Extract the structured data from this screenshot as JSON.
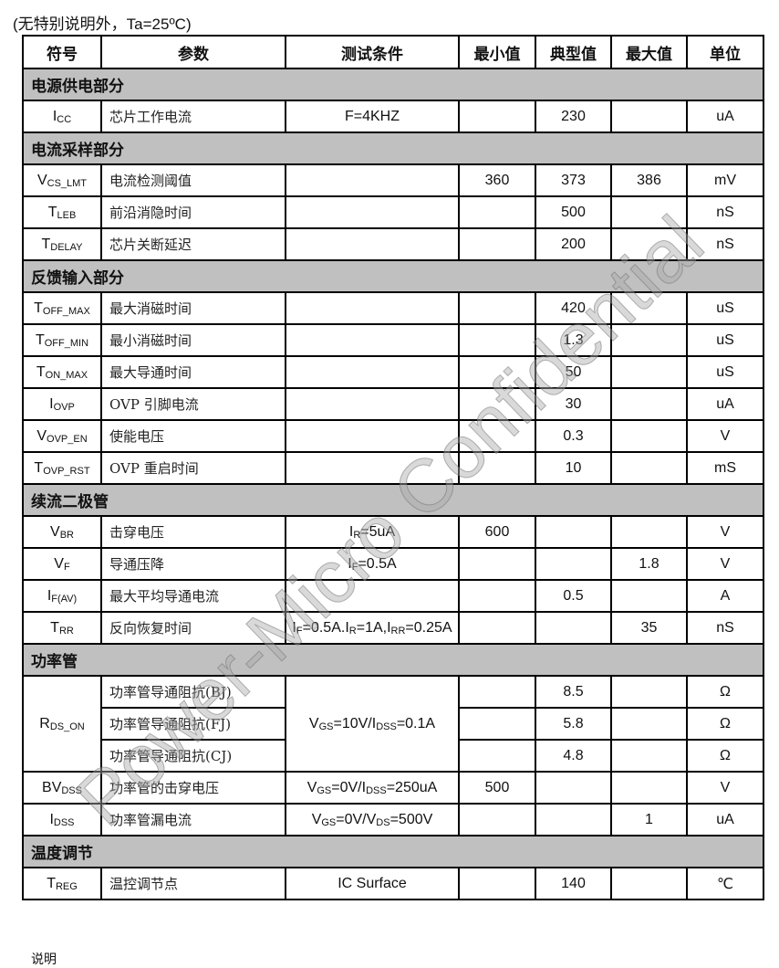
{
  "note": "(无特别说明外，Ta=25ºC)",
  "headers": [
    "符号",
    "参数",
    "测试条件",
    "最小值",
    "典型值",
    "最大值",
    "单位"
  ],
  "watermark": "Power-Micro Confidential",
  "footer": "说明",
  "rows": [
    {
      "section": "电源供电部分"
    },
    {
      "sym": [
        [
          "I",
          ""
        ],
        [
          "CC",
          "s"
        ]
      ],
      "param": "芯片工作电流",
      "cond": [
        [
          "F=4KHZ",
          ""
        ]
      ],
      "min": "",
      "typ": "230",
      "max": "",
      "unit": "uA"
    },
    {
      "section": "电流采样部分"
    },
    {
      "sym": [
        [
          "V",
          ""
        ],
        [
          "CS_LMT",
          "s"
        ]
      ],
      "param": "电流检测阈值",
      "cond": [],
      "min": "360",
      "typ": "373",
      "max": "386",
      "unit": "mV"
    },
    {
      "sym": [
        [
          "T",
          ""
        ],
        [
          "LEB",
          "s"
        ]
      ],
      "param": "前沿消隐时间",
      "cond": [],
      "min": "",
      "typ": "500",
      "max": "",
      "unit": "nS"
    },
    {
      "sym": [
        [
          "T",
          ""
        ],
        [
          "DELAY",
          "s"
        ]
      ],
      "param": "芯片关断延迟",
      "cond": [],
      "min": "",
      "typ": "200",
      "max": "",
      "unit": "nS"
    },
    {
      "section": "反馈输入部分"
    },
    {
      "sym": [
        [
          "T",
          ""
        ],
        [
          "OFF_MAX",
          "s"
        ]
      ],
      "param": "最大消磁时间",
      "cond": [],
      "min": "",
      "typ": "420",
      "max": "",
      "unit": "uS"
    },
    {
      "sym": [
        [
          "T",
          ""
        ],
        [
          "OFF_MIN",
          "s"
        ]
      ],
      "param": "最小消磁时间",
      "cond": [],
      "min": "",
      "typ": "1.3",
      "max": "",
      "unit": "uS"
    },
    {
      "sym": [
        [
          "T",
          ""
        ],
        [
          "ON_MAX",
          "s"
        ]
      ],
      "param": "最大导通时间",
      "cond": [],
      "min": "",
      "typ": "50",
      "max": "",
      "unit": "uS"
    },
    {
      "sym": [
        [
          "I",
          ""
        ],
        [
          "OVP",
          "s"
        ]
      ],
      "param": "OVP 引脚电流",
      "cond": [],
      "min": "",
      "typ": "30",
      "max": "",
      "unit": "uA"
    },
    {
      "sym": [
        [
          "V",
          ""
        ],
        [
          "OVP_EN",
          "s"
        ]
      ],
      "param": "使能电压",
      "cond": [],
      "min": "",
      "typ": "0.3",
      "max": "",
      "unit": "V"
    },
    {
      "sym": [
        [
          "T",
          ""
        ],
        [
          "OVP_RST",
          "s"
        ]
      ],
      "param": "OVP 重启时间",
      "cond": [],
      "min": "",
      "typ": "10",
      "max": "",
      "unit": "mS"
    },
    {
      "section": "续流二极管"
    },
    {
      "sym": [
        [
          "V",
          ""
        ],
        [
          "BR",
          "s"
        ]
      ],
      "param": "击穿电压",
      "cond": [
        [
          "I",
          ""
        ],
        [
          "R",
          "s"
        ],
        [
          "=5uA",
          ""
        ]
      ],
      "min": "600",
      "typ": "",
      "max": "",
      "unit": "V"
    },
    {
      "sym": [
        [
          "V",
          ""
        ],
        [
          "F",
          "s"
        ]
      ],
      "param": "导通压降",
      "cond": [
        [
          "I",
          ""
        ],
        [
          "F",
          "s"
        ],
        [
          "=0.5A",
          ""
        ]
      ],
      "min": "",
      "typ": "",
      "max": "1.8",
      "unit": "V"
    },
    {
      "sym": [
        [
          "I",
          ""
        ],
        [
          "F(AV)",
          "s"
        ]
      ],
      "param": "最大平均导通电流",
      "cond": [],
      "min": "",
      "typ": "0.5",
      "max": "",
      "unit": "A"
    },
    {
      "sym": [
        [
          "T",
          ""
        ],
        [
          "RR",
          "s"
        ]
      ],
      "param": "反向恢复时间",
      "cond": [
        [
          "I",
          ""
        ],
        [
          "F",
          "s"
        ],
        [
          "=0.5A.I",
          ""
        ],
        [
          "R",
          "s"
        ],
        [
          "=1A,I",
          ""
        ],
        [
          "RR",
          "s"
        ],
        [
          "=0.25A",
          ""
        ]
      ],
      "min": "",
      "typ": "",
      "max": "35",
      "unit": "nS"
    },
    {
      "section": "功率管"
    },
    {
      "sym": [
        [
          "R",
          ""
        ],
        [
          "DS_ON",
          "s"
        ]
      ],
      "symRowspan": 3,
      "param": "功率管导通阻抗(BJ)",
      "cond": [
        [
          "V",
          ""
        ],
        [
          "GS",
          "s"
        ],
        [
          "=10V/I",
          ""
        ],
        [
          "DSS",
          "s"
        ],
        [
          "=0.1A",
          ""
        ]
      ],
      "condRowspan": 3,
      "min": "",
      "typ": "8.5",
      "max": "",
      "unit": "Ω"
    },
    {
      "param": "功率管导通阻抗(FJ)",
      "min": "",
      "typ": "5.8",
      "max": "",
      "unit": "Ω",
      "merged": true
    },
    {
      "param": "功率管导通阻抗(CJ)",
      "min": "",
      "typ": "4.8",
      "max": "",
      "unit": "Ω",
      "merged": true
    },
    {
      "sym": [
        [
          "BV",
          ""
        ],
        [
          "DSS",
          "s"
        ]
      ],
      "param": "功率管的击穿电压",
      "cond": [
        [
          "V",
          ""
        ],
        [
          "GS",
          "s"
        ],
        [
          "=0V/I",
          ""
        ],
        [
          "DSS",
          "s"
        ],
        [
          "=250uA",
          ""
        ]
      ],
      "min": "500",
      "typ": "",
      "max": "",
      "unit": "V"
    },
    {
      "sym": [
        [
          "I",
          ""
        ],
        [
          "DSS",
          "s"
        ]
      ],
      "param": "功率管漏电流",
      "cond": [
        [
          "V",
          ""
        ],
        [
          "GS",
          "s"
        ],
        [
          "=0V/V",
          ""
        ],
        [
          "DS",
          "s"
        ],
        [
          "=500V",
          ""
        ]
      ],
      "min": "",
      "typ": "",
      "max": "1",
      "unit": "uA"
    },
    {
      "section": "温度调节"
    },
    {
      "sym": [
        [
          "T",
          ""
        ],
        [
          "REG",
          "s"
        ]
      ],
      "param": "温控调节点",
      "cond": [
        [
          "IC Surface",
          ""
        ]
      ],
      "min": "",
      "typ": "140",
      "max": "",
      "unit": "℃"
    }
  ]
}
